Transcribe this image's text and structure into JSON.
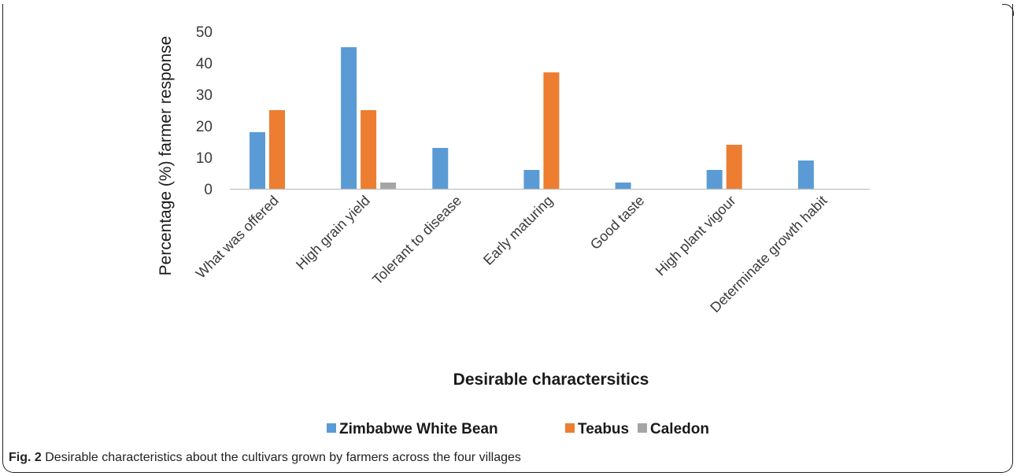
{
  "colors": {
    "zimbabwe_white_bean": "#5b9bd5",
    "teabus": "#ed7d31",
    "caledon": "#a5a5a5",
    "axis": "#bfbfbf"
  },
  "caption": {
    "label": "Fig. 2",
    "text": "Desirable characteristics about the cultivars grown by farmers across the four villages"
  },
  "chart_data": {
    "type": "bar",
    "title": "",
    "xlabel": "Desirable charactersitics",
    "ylabel": "Percentage (%) farmer response",
    "ylim": [
      0,
      50
    ],
    "yticks": [
      0,
      10,
      20,
      30,
      40,
      50
    ],
    "grid": false,
    "legend_position": "bottom",
    "categories": [
      "What was offered",
      "High grain yield",
      "Tolerant to disease",
      "Early maturing",
      "Good taste",
      "High plant vigour",
      "Determinate growth habit"
    ],
    "series": [
      {
        "name": "Zimbabwe White Bean",
        "values": [
          18,
          45,
          13,
          6,
          2,
          6,
          9
        ]
      },
      {
        "name": "Teabus",
        "values": [
          25,
          25,
          0,
          37,
          0,
          14,
          0
        ]
      },
      {
        "name": "Caledon",
        "values": [
          0,
          2,
          0,
          0,
          0,
          0,
          0
        ]
      }
    ]
  }
}
